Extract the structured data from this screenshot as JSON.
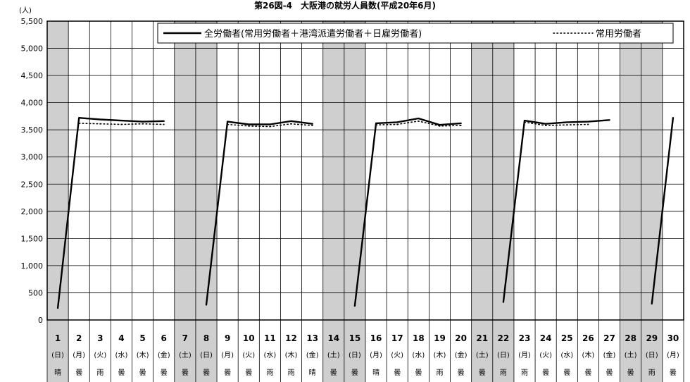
{
  "chart_data": {
    "type": "line",
    "title": "第26図-4　大阪港の就労人員数(平成20年6月)",
    "ylabel": "(人)",
    "xlabel": "",
    "ylim": [
      0,
      5500
    ],
    "yticks": [
      "0",
      "500",
      "1,000",
      "1,500",
      "2,000",
      "2,500",
      "3,000",
      "3,500",
      "4,000",
      "4,500",
      "5,000",
      "5,500"
    ],
    "grid": true,
    "legend_position": "top-right",
    "categories": [
      "1",
      "2",
      "3",
      "4",
      "5",
      "6",
      "7",
      "8",
      "9",
      "10",
      "11",
      "12",
      "13",
      "14",
      "15",
      "16",
      "17",
      "18",
      "19",
      "20",
      "21",
      "22",
      "23",
      "24",
      "25",
      "26",
      "27",
      "28",
      "29",
      "30"
    ],
    "weekdays": [
      "(日)",
      "(月)",
      "(火)",
      "(水)",
      "(木)",
      "(金)",
      "(土)",
      "(日)",
      "(月)",
      "(火)",
      "(水)",
      "(木)",
      "(金)",
      "(土)",
      "(日)",
      "(月)",
      "(火)",
      "(水)",
      "(木)",
      "(金)",
      "(土)",
      "(日)",
      "(月)",
      "(火)",
      "(水)",
      "(木)",
      "(金)",
      "(土)",
      "(日)",
      "(月)"
    ],
    "weather": [
      "晴",
      "曇",
      "雨",
      "曇",
      "曇",
      "曇",
      "曇",
      "曇",
      "曇",
      "曇",
      "雨",
      "雨",
      "晴",
      "曇",
      "曇",
      "晴",
      "曇",
      "曇",
      "雨",
      "曇",
      "曇",
      "雨",
      "雨",
      "曇",
      "曇",
      "曇",
      "曇",
      "曇",
      "雨",
      "曇"
    ],
    "shaded_days": [
      "1",
      "7",
      "8",
      "14",
      "15",
      "21",
      "22",
      "28",
      "29"
    ],
    "series": [
      {
        "name": "全労働者(常用労働者＋港湾派遣労働者＋日雇労働者)",
        "style": "solid",
        "color": "#000000",
        "values": [
          220,
          3720,
          3690,
          3670,
          3650,
          3660,
          null,
          280,
          3650,
          3600,
          3600,
          3660,
          3610,
          null,
          260,
          3620,
          3640,
          3710,
          3590,
          3620,
          null,
          330,
          3670,
          3610,
          3640,
          3650,
          3680,
          null,
          300,
          3720
        ]
      },
      {
        "name": "常用労働者",
        "style": "dotted",
        "color": "#000000",
        "values": [
          null,
          3620,
          3610,
          3600,
          3610,
          3600,
          null,
          null,
          3600,
          3570,
          3560,
          3610,
          3580,
          null,
          null,
          3590,
          3600,
          3660,
          3570,
          3580,
          null,
          null,
          3640,
          3580,
          3590,
          3600,
          null,
          null,
          null,
          null
        ]
      }
    ]
  }
}
